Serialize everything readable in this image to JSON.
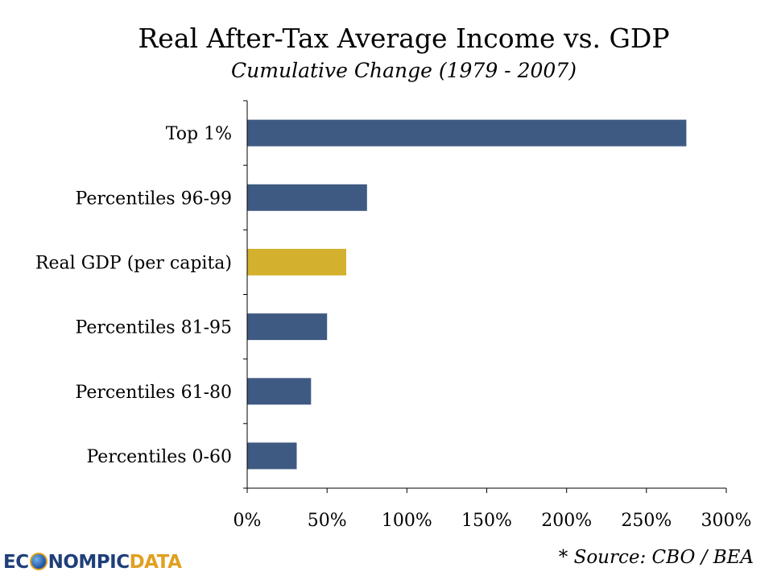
{
  "chart_data": {
    "type": "bar",
    "orientation": "horizontal",
    "title": "Real After-Tax Average Income vs. GDP",
    "subtitle": "Cumulative Change (1979 - 2007)",
    "categories": [
      "Top 1%",
      "Percentiles 96-99",
      "Real GDP (per capita)",
      "Percentiles 81-95",
      "Percentiles 61-80",
      "Percentiles 0-60"
    ],
    "values": [
      275,
      75,
      62,
      50,
      40,
      31
    ],
    "bar_colors": [
      "#3f5a82",
      "#3f5a82",
      "#d3b12e",
      "#3f5a82",
      "#3f5a82",
      "#3f5a82"
    ],
    "xlim": [
      0,
      300
    ],
    "xticks": [
      0,
      50,
      100,
      150,
      200,
      250,
      300
    ],
    "xtick_labels": [
      "0%",
      "50%",
      "100%",
      "150%",
      "200%",
      "250%",
      "300%"
    ],
    "xlabel": "",
    "ylabel": "",
    "grid": false,
    "legend": "none"
  },
  "logo": {
    "part1": "EC",
    "part2": "NOMPIC",
    "part3": "DATA",
    "icon": "globe-icon"
  },
  "source_note": "* Source: CBO / BEA"
}
